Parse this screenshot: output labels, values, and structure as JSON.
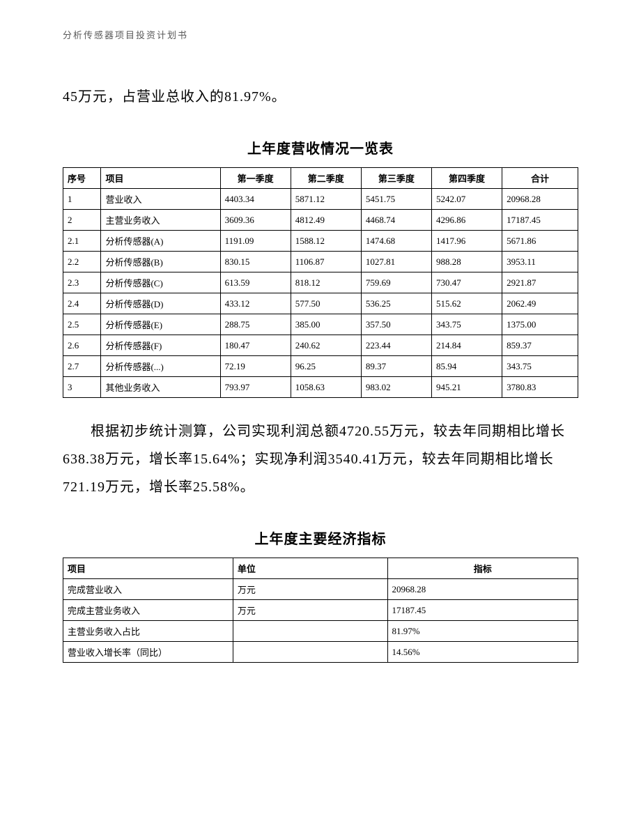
{
  "header": "分析传感器项目投资计划书",
  "paragraph1": "45万元，占营业总收入的81.97%。",
  "revenue_table": {
    "title": "上年度营收情况一览表",
    "columns": [
      "序号",
      "项目",
      "第一季度",
      "第二季度",
      "第三季度",
      "第四季度",
      "合计"
    ],
    "rows": [
      [
        "1",
        "营业收入",
        "4403.34",
        "5871.12",
        "5451.75",
        "5242.07",
        "20968.28"
      ],
      [
        "2",
        "主营业务收入",
        "3609.36",
        "4812.49",
        "4468.74",
        "4296.86",
        "17187.45"
      ],
      [
        "2.1",
        "分析传感器(A)",
        "1191.09",
        "1588.12",
        "1474.68",
        "1417.96",
        "5671.86"
      ],
      [
        "2.2",
        "分析传感器(B)",
        "830.15",
        "1106.87",
        "1027.81",
        "988.28",
        "3953.11"
      ],
      [
        "2.3",
        "分析传感器(C)",
        "613.59",
        "818.12",
        "759.69",
        "730.47",
        "2921.87"
      ],
      [
        "2.4",
        "分析传感器(D)",
        "433.12",
        "577.50",
        "536.25",
        "515.62",
        "2062.49"
      ],
      [
        "2.5",
        "分析传感器(E)",
        "288.75",
        "385.00",
        "357.50",
        "343.75",
        "1375.00"
      ],
      [
        "2.6",
        "分析传感器(F)",
        "180.47",
        "240.62",
        "223.44",
        "214.84",
        "859.37"
      ],
      [
        "2.7",
        "分析传感器(...)",
        "72.19",
        "96.25",
        "89.37",
        "85.94",
        "343.75"
      ],
      [
        "3",
        "其他业务收入",
        "793.97",
        "1058.63",
        "983.02",
        "945.21",
        "3780.83"
      ]
    ]
  },
  "paragraph2": "根据初步统计测算，公司实现利润总额4720.55万元，较去年同期相比增长638.38万元，增长率15.64%；实现净利润3540.41万元，较去年同期相比增长721.19万元，增长率25.58%。",
  "indicator_table": {
    "title": "上年度主要经济指标",
    "columns": [
      "项目",
      "单位",
      "指标"
    ],
    "rows": [
      [
        "完成营业收入",
        "万元",
        "20968.28"
      ],
      [
        "完成主营业务收入",
        "万元",
        "17187.45"
      ],
      [
        "主营业务收入占比",
        "",
        "81.97%"
      ],
      [
        "营业收入增长率（同比）",
        "",
        "14.56%"
      ]
    ]
  }
}
